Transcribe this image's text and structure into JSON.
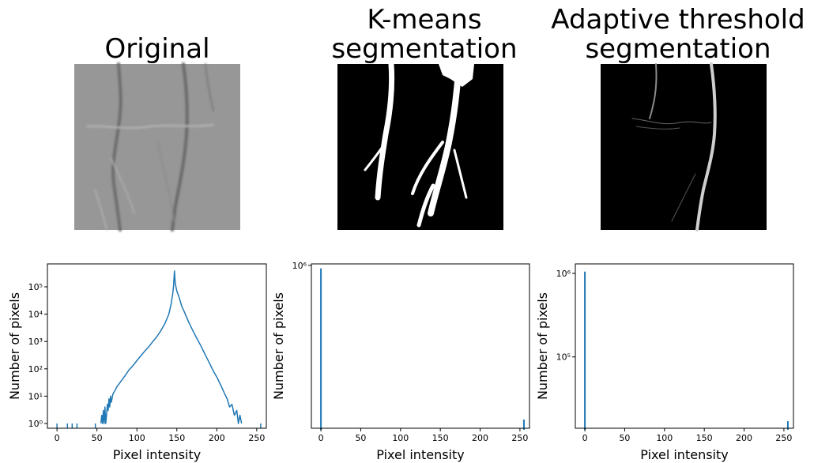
{
  "chart_data": [
    {
      "type": "line",
      "title": "Original",
      "xlabel": "Pixel intensity",
      "ylabel": "Number of pixels",
      "color": "#1f77b4",
      "log_y": true,
      "x": [
        0,
        1,
        13,
        14,
        19,
        20,
        25,
        26,
        48,
        49,
        55,
        56,
        57,
        58,
        59,
        60,
        61,
        62,
        63,
        64,
        65,
        66,
        67,
        68,
        70,
        72,
        75,
        80,
        85,
        90,
        95,
        100,
        105,
        110,
        115,
        120,
        125,
        130,
        135,
        140,
        143,
        145,
        146,
        147,
        148,
        150,
        153,
        156,
        160,
        165,
        170,
        175,
        180,
        185,
        190,
        195,
        200,
        205,
        210,
        213,
        216,
        219,
        222,
        225,
        227,
        229,
        231,
        232,
        255
      ],
      "values": [
        1,
        null,
        1,
        null,
        1,
        null,
        1,
        null,
        1,
        null,
        1,
        2,
        1,
        3,
        1,
        4,
        1,
        2,
        5,
        3,
        8,
        4,
        10,
        6,
        12,
        15,
        22,
        35,
        55,
        90,
        130,
        200,
        300,
        450,
        650,
        1000,
        1500,
        2500,
        4500,
        10000,
        25000,
        60000,
        120000,
        380000,
        130000,
        70000,
        40000,
        20000,
        11000,
        5000,
        2500,
        1300,
        700,
        350,
        180,
        90,
        50,
        25,
        12,
        8,
        4,
        5,
        2,
        3,
        1,
        2,
        1,
        null,
        1
      ],
      "xlim": [
        -12,
        262
      ],
      "xticks": [
        0,
        50,
        100,
        150,
        200,
        250
      ],
      "ylim": [
        0.67,
        690000
      ],
      "yticks": [
        {
          "value": 1,
          "label": "10⁰"
        },
        {
          "value": 10,
          "label": "10¹"
        },
        {
          "value": 100,
          "label": "10²"
        },
        {
          "value": 1000,
          "label": "10³"
        },
        {
          "value": 10000,
          "label": "10⁴"
        },
        {
          "value": 100000,
          "label": "10⁵"
        }
      ]
    },
    {
      "type": "vlines",
      "title": "K-means\nsegmentation",
      "xlabel": "Pixel intensity",
      "ylabel": "Number of pixels",
      "color": "#1f77b4",
      "log_y": true,
      "x": [
        0,
        255
      ],
      "values": [
        960000,
        129000
      ],
      "xlim": [
        -12,
        262
      ],
      "xticks": [
        0,
        50,
        100,
        150,
        200,
        250
      ],
      "ylim": [
        115000,
        1020000
      ],
      "yticks": [
        {
          "value": 1000000,
          "label": "10⁶"
        }
      ]
    },
    {
      "type": "vlines",
      "title": "Adaptive threshold\nsegmentation",
      "xlabel": "Pixel intensity",
      "ylabel": "Number of pixels",
      "color": "#1f77b4",
      "log_y": true,
      "x": [
        0,
        255
      ],
      "values": [
        1050000,
        17000
      ],
      "xlim": [
        -12,
        262
      ],
      "xticks": [
        0,
        50,
        100,
        150,
        200,
        250
      ],
      "ylim": [
        14000,
        1300000
      ],
      "yticks": [
        {
          "value": 100000,
          "label": "10⁵"
        },
        {
          "value": 1000000,
          "label": "10⁶"
        }
      ]
    }
  ]
}
